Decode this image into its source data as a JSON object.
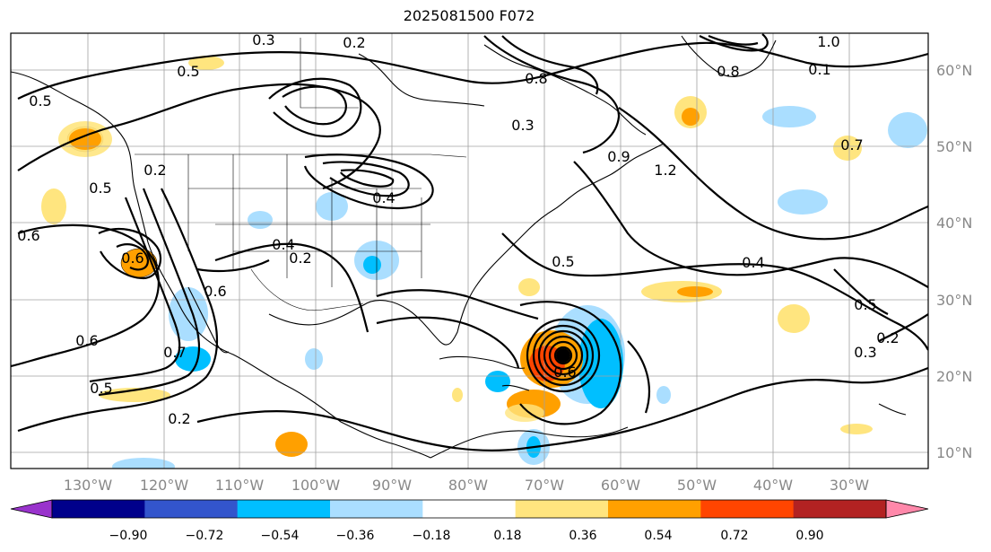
{
  "title": "2025081500 F072",
  "longitude_labels": [
    "130°W",
    "120°W",
    "110°W",
    "100°W",
    "90°W",
    "80°W",
    "70°W",
    "60°W",
    "50°W",
    "40°W",
    "30°W"
  ],
  "latitude_labels": [
    "60°N",
    "50°N",
    "40°N",
    "30°N",
    "20°N",
    "10°N"
  ],
  "contour_labels": [
    "0.3",
    "0.2",
    "0.5",
    "0.8",
    "0.8",
    "1.0",
    "0.1",
    "0.7",
    "0.4",
    "0.3",
    "0.2",
    "0.6",
    "0.5",
    "0.5",
    "0.4",
    "0.6",
    "0.5",
    "0.2",
    "0.6",
    "0.7",
    "0.5",
    "0.6",
    "0.2",
    "0.4",
    "0.5",
    "0.3",
    "0.2",
    "1.2",
    "0.9",
    "0.6"
  ],
  "colorbar": {
    "tick_labels": [
      "−0.90",
      "−0.72",
      "−0.54",
      "−0.36",
      "−0.18",
      "0.18",
      "0.36",
      "0.54",
      "0.72",
      "0.90"
    ],
    "colors": [
      "#9933cc",
      "#00008b",
      "#3355cc",
      "#00bfff",
      "#aadeff",
      "#ffffff",
      "#ffe57f",
      "#ffa000",
      "#ff4500",
      "#b22222",
      "#ff88aa"
    ],
    "extend": "both"
  },
  "features": {
    "storm_marker": "black-filled-circle-icon",
    "shading": "anomaly-color-fill",
    "contours": "black-solid-isolines"
  }
}
